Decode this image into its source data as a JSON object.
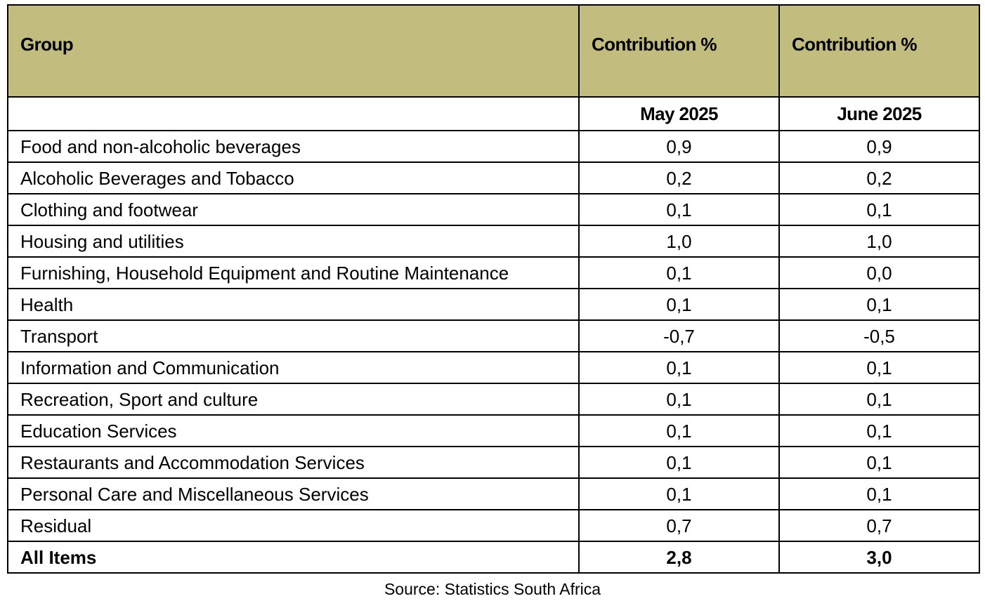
{
  "table": {
    "header": {
      "group": "Group",
      "col1": "Contribution %",
      "col2": "Contribution %"
    },
    "subheader": {
      "group": "",
      "col1": "May 2025",
      "col2": "June 2025"
    },
    "rows": [
      {
        "group": "Food and non-alcoholic beverages",
        "may": "0,9",
        "june": "0,9"
      },
      {
        "group": "Alcoholic Beverages and Tobacco",
        "may": "0,2",
        "june": "0,2"
      },
      {
        "group": "Clothing and footwear",
        "may": "0,1",
        "june": "0,1"
      },
      {
        "group": "Housing and utilities",
        "may": "1,0",
        "june": "1,0"
      },
      {
        "group": "Furnishing, Household Equipment and Routine Maintenance",
        "may": "0,1",
        "june": "0,0"
      },
      {
        "group": "Health",
        "may": "0,1",
        "june": "0,1"
      },
      {
        "group": "Transport",
        "may": "-0,7",
        "june": "-0,5"
      },
      {
        "group": "Information and Communication",
        "may": "0,1",
        "june": "0,1"
      },
      {
        "group": "Recreation, Sport and culture",
        "may": "0,1",
        "june": "0,1"
      },
      {
        "group": "Education Services",
        "may": "0,1",
        "june": "0,1"
      },
      {
        "group": "Restaurants and Accommodation Services",
        "may": "0,1",
        "june": "0,1"
      },
      {
        "group": "Personal Care and Miscellaneous Services",
        "may": "0,1",
        "june": "0,1"
      },
      {
        "group": "Residual",
        "may": "0,7",
        "june": "0,7"
      }
    ],
    "total": {
      "group": "All Items",
      "may": "2,8",
      "june": "3,0"
    }
  },
  "source": "Source: Statistics South Africa",
  "colors": {
    "header_bg": "#c2bc7e",
    "border": "#000000"
  }
}
